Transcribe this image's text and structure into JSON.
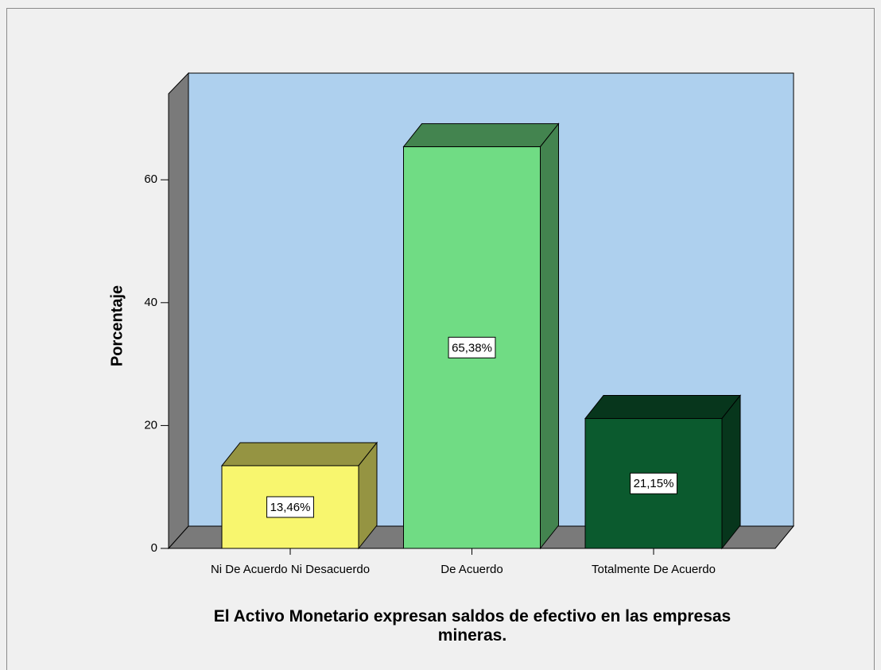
{
  "chart_data": {
    "type": "bar3d",
    "ylabel": "Porcentaje",
    "xlabel": "El Activo Monetario expresan saldos de efectivo en las empresas mineras.",
    "categories": [
      "Ni De Acuerdo Ni Desacuerdo",
      "De Acuerdo",
      "Totalmente De Acuerdo"
    ],
    "values": [
      13.46,
      65.38,
      21.15
    ],
    "value_labels": [
      "13,46%",
      "65,38%",
      "21,15%"
    ],
    "colors": [
      "#f8f66e",
      "#70dc84",
      "#0b5a2e"
    ],
    "ylim": [
      0,
      74
    ],
    "yticks": [
      0,
      20,
      40,
      60
    ],
    "grid": false
  }
}
